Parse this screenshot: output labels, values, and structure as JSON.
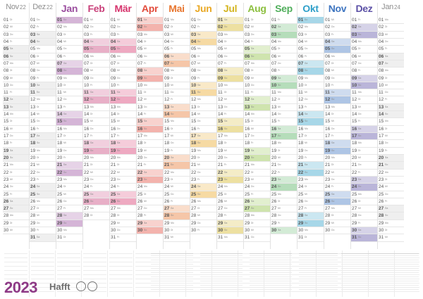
{
  "year": "2023",
  "brand": "Hafft",
  "months": [
    {
      "name": "Nov",
      "year": "22",
      "color": "#8d8d8d",
      "side": true,
      "days": 30,
      "start": 1
    },
    {
      "name": "Dez",
      "year": "22",
      "color": "#8d8d8d",
      "side": true,
      "days": 31,
      "start": 3
    },
    {
      "name": "Jan",
      "year": "",
      "color": "#9b4e9f",
      "side": false,
      "days": 31,
      "start": 6
    },
    {
      "name": "Feb",
      "year": "",
      "color": "#c9407a",
      "side": false,
      "days": 28,
      "start": 2
    },
    {
      "name": "Mär",
      "year": "",
      "color": "#d6336c",
      "side": false,
      "days": 31,
      "start": 2
    },
    {
      "name": "Apr",
      "year": "",
      "color": "#e24b3b",
      "side": false,
      "days": 30,
      "start": 5
    },
    {
      "name": "Mai",
      "year": "",
      "color": "#e8762f",
      "side": false,
      "days": 31,
      "start": 0
    },
    {
      "name": "Jun",
      "year": "",
      "color": "#e9a824",
      "side": false,
      "days": 30,
      "start": 3
    },
    {
      "name": "Jul",
      "year": "",
      "color": "#d4b51f",
      "side": false,
      "days": 31,
      "start": 5
    },
    {
      "name": "Aug",
      "year": "",
      "color": "#8cbf3f",
      "side": false,
      "days": 31,
      "start": 1
    },
    {
      "name": "Sep",
      "year": "",
      "color": "#4fae5a",
      "side": false,
      "days": 30,
      "start": 4
    },
    {
      "name": "Okt",
      "year": "",
      "color": "#2e9fc9",
      "side": false,
      "days": 31,
      "start": 6
    },
    {
      "name": "Nov",
      "year": "",
      "color": "#3e75c0",
      "side": false,
      "days": 30,
      "start": 2
    },
    {
      "name": "Dez",
      "year": "",
      "color": "#5a4fa5",
      "side": false,
      "days": 31,
      "start": 4
    },
    {
      "name": "Jan",
      "year": "24",
      "color": "#8d8d8d",
      "side": true,
      "days": 31,
      "start": 0
    }
  ],
  "weekdays": [
    "Mo",
    "Di",
    "Mi",
    "Do",
    "Fr",
    "Sa",
    "So"
  ]
}
